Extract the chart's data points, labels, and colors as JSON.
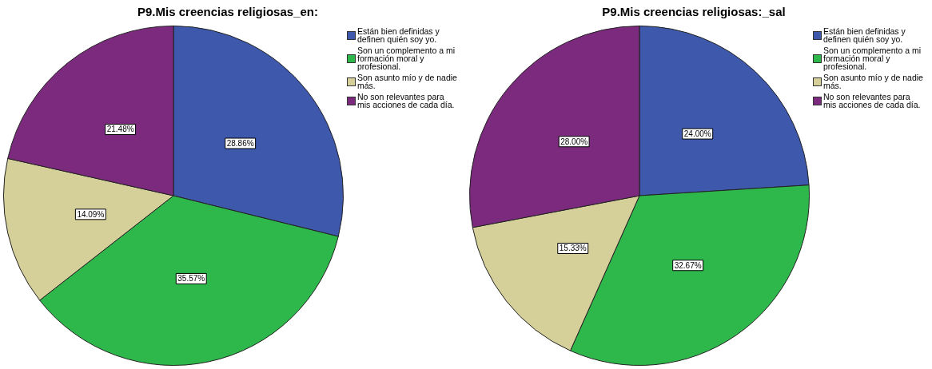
{
  "chart_data": [
    {
      "type": "pie",
      "title": "P9.Mis creencias religiosas_en:",
      "categories": [
        "Están bien definidas y definen quién soy yo.",
        "Son un complemento a mi formación moral y profesional.",
        "Son asunto mío y de nadie más.",
        "No son relevantes para mis acciones de cada día."
      ],
      "values": [
        28.86,
        35.57,
        14.09,
        21.48
      ],
      "value_labels": [
        "28.86%",
        "35.57%",
        "14.09%",
        "21.48%"
      ],
      "colors": [
        "#3e58ac",
        "#2eb84b",
        "#d5cf9a",
        "#7b2a7d"
      ],
      "legend": "top right"
    },
    {
      "type": "pie",
      "title": "P9.Mis creencias religiosas:_sal",
      "categories": [
        "Están bien definidas y definen quién soy yo.",
        "Son un complemento a mi formación moral y profesional.",
        "Son asunto mío y de nadie más.",
        "No son relevantes para mis acciones de cada día."
      ],
      "values": [
        24.0,
        32.67,
        15.33,
        28.0
      ],
      "value_labels": [
        "24.00%",
        "32.67%",
        "15.33%",
        "28.00%"
      ],
      "colors": [
        "#3e58ac",
        "#2eb84b",
        "#d5cf9a",
        "#7b2a7d"
      ],
      "legend": "top right"
    }
  ]
}
